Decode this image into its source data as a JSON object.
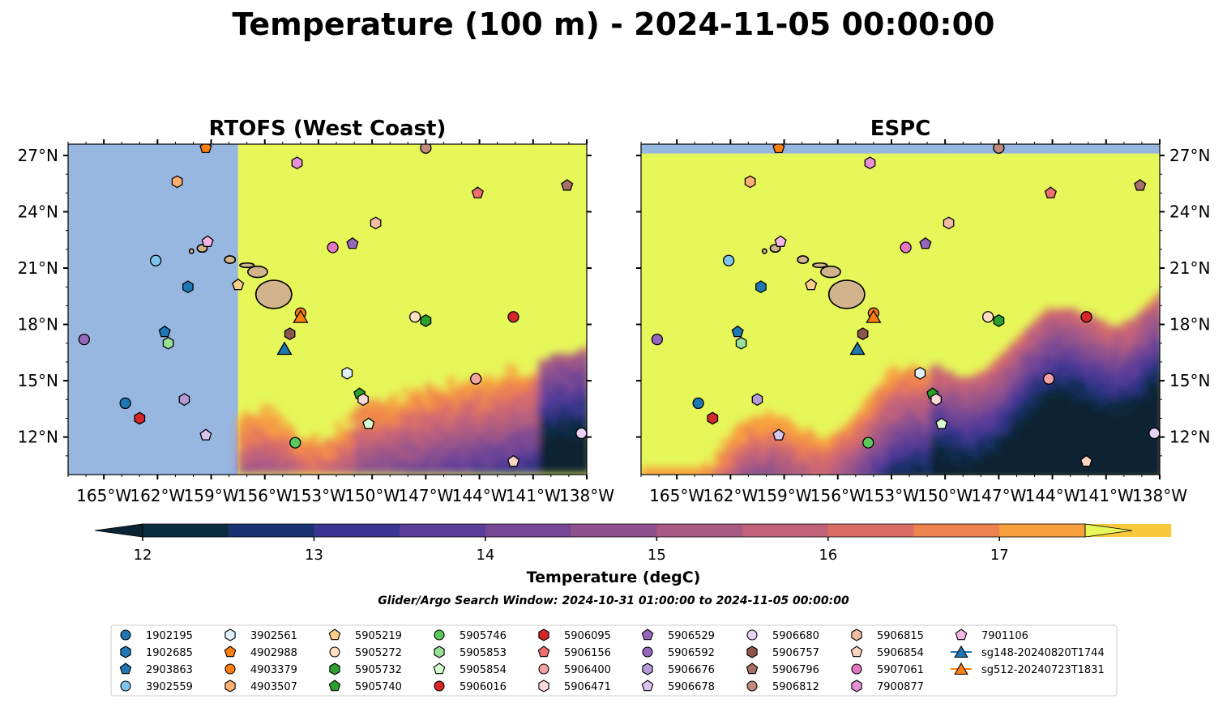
{
  "figure": {
    "title": "Temperature (100 m) - 2024-11-05 00:00:00",
    "search_window": "Glider/Argo Search Window: 2024-10-31 01:00:00 to 2024-11-05 00:00:00"
  },
  "colors": {
    "land": "#d2b48c",
    "nodata": "#97b6e0",
    "warm": "#e6f75a",
    "frame": "#000000"
  },
  "chart_data": {
    "type": "heatmap",
    "panels": [
      {
        "id": "rtofs",
        "title": "RTOFS (West Coast)",
        "model_west_edge_lon": -157.5,
        "model_north_edge_lat": 27.6,
        "cool_field": "south-east"
      },
      {
        "id": "espc",
        "title": "ESPC",
        "model_west_edge_lon": -167,
        "model_north_edge_lat": 27.1,
        "cool_field": "south"
      }
    ],
    "xlim": [
      -167,
      -138
    ],
    "ylim": [
      10,
      27.6
    ],
    "x_ticks": [
      {
        "value": -165,
        "label": "165°W"
      },
      {
        "value": -162,
        "label": "162°W"
      },
      {
        "value": -159,
        "label": "159°W"
      },
      {
        "value": -156,
        "label": "156°W"
      },
      {
        "value": -153,
        "label": "153°W"
      },
      {
        "value": -150,
        "label": "150°W"
      },
      {
        "value": -147,
        "label": "147°W"
      },
      {
        "value": -144,
        "label": "144°W"
      },
      {
        "value": -141,
        "label": "141°W"
      },
      {
        "value": -138,
        "label": "138°W"
      }
    ],
    "y_ticks": [
      {
        "value": 12,
        "label": "12°N"
      },
      {
        "value": 15,
        "label": "15°N"
      },
      {
        "value": 18,
        "label": "18°N"
      },
      {
        "value": 21,
        "label": "21°N"
      },
      {
        "value": 24,
        "label": "24°N"
      },
      {
        "value": 27,
        "label": "27°N"
      }
    ],
    "colorbar": {
      "label": "Temperature (degC)",
      "min": 12,
      "max": 17.5,
      "step": 0.5,
      "ticks": [
        12,
        13,
        14,
        15,
        16,
        17
      ],
      "colors": [
        "#0c2c40",
        "#1b3272",
        "#3c3492",
        "#5a3d98",
        "#764795",
        "#8e518e",
        "#a85a84",
        "#c2627a",
        "#da6e67",
        "#ee8350",
        "#f8a03e",
        "#f7c83c"
      ],
      "under_color": "#0a2433",
      "over_color": "#e6f75a",
      "extend": "both"
    },
    "floats": [
      {
        "id": "1902195",
        "lon": -163.8,
        "lat": 13.8,
        "marker": "circle",
        "color": "#1f77b4"
      },
      {
        "id": "1902685",
        "lon": -160.3,
        "lat": 20.0,
        "marker": "hexagon",
        "color": "#1f77b4"
      },
      {
        "id": "2903863",
        "lon": -161.6,
        "lat": 17.6,
        "marker": "pentagon",
        "color": "#1f77b4"
      },
      {
        "id": "3902559",
        "lon": -162.1,
        "lat": 21.4,
        "marker": "circle",
        "color": "#7fc4ec"
      },
      {
        "id": "3902561",
        "lon": -151.4,
        "lat": 15.4,
        "marker": "hexagon",
        "color": "#dff2fb"
      },
      {
        "id": "4902988",
        "lon": -159.3,
        "lat": 27.4,
        "marker": "pentagon",
        "color": "#ff7f0e"
      },
      {
        "id": "4903379",
        "lon": -154.0,
        "lat": 18.6,
        "marker": "circle",
        "color": "#ff7f0e"
      },
      {
        "id": "4903507",
        "lon": -160.9,
        "lat": 25.6,
        "marker": "hexagon",
        "color": "#ffb070"
      },
      {
        "id": "5905219",
        "lon": -157.5,
        "lat": 20.1,
        "marker": "pentagon",
        "color": "#ffcf8a"
      },
      {
        "id": "5905272",
        "lon": -147.6,
        "lat": 18.4,
        "marker": "circle",
        "color": "#ffe0c0"
      },
      {
        "id": "5905732",
        "lon": -147.0,
        "lat": 18.2,
        "marker": "hexagon",
        "color": "#2ca02c"
      },
      {
        "id": "5905740",
        "lon": -150.7,
        "lat": 14.3,
        "marker": "pentagon",
        "color": "#2ca02c"
      },
      {
        "id": "5905746",
        "lon": -154.3,
        "lat": 11.7,
        "marker": "circle",
        "color": "#5cc95c"
      },
      {
        "id": "5905853",
        "lon": -161.4,
        "lat": 17.0,
        "marker": "hexagon",
        "color": "#98e098"
      },
      {
        "id": "5905854",
        "lon": -150.2,
        "lat": 12.7,
        "marker": "pentagon",
        "color": "#d7fbd0"
      },
      {
        "id": "5906016",
        "lon": -142.1,
        "lat": 18.4,
        "marker": "circle",
        "color": "#d62728"
      },
      {
        "id": "5906095",
        "lon": -163.0,
        "lat": 13.0,
        "marker": "hexagon",
        "color": "#d62728"
      },
      {
        "id": "5906156",
        "lon": -144.1,
        "lat": 25.0,
        "marker": "pentagon",
        "color": "#f07070"
      },
      {
        "id": "5906400",
        "lon": -144.2,
        "lat": 15.1,
        "marker": "circle",
        "color": "#f4a3a3"
      },
      {
        "id": "5906471",
        "lon": -150.5,
        "lat": 14.0,
        "marker": "hexagon",
        "color": "#fdd9d9"
      },
      {
        "id": "5906529",
        "lon": -151.1,
        "lat": 22.3,
        "marker": "pentagon",
        "color": "#9467bd"
      },
      {
        "id": "5906592",
        "lon": -166.1,
        "lat": 17.2,
        "marker": "circle",
        "color": "#9467bd"
      },
      {
        "id": "5906676",
        "lon": -160.5,
        "lat": 14.0,
        "marker": "hexagon",
        "color": "#b59ad6"
      },
      {
        "id": "5906678",
        "lon": -159.3,
        "lat": 12.1,
        "marker": "pentagon",
        "color": "#d9c6ef"
      },
      {
        "id": "5906680",
        "lon": -138.3,
        "lat": 12.2,
        "marker": "circle",
        "color": "#e9d3f7"
      },
      {
        "id": "5906757",
        "lon": -154.6,
        "lat": 17.5,
        "marker": "hexagon",
        "color": "#8c564b"
      },
      {
        "id": "5906796",
        "lon": -139.1,
        "lat": 25.4,
        "marker": "pentagon",
        "color": "#a67166"
      },
      {
        "id": "5906812",
        "lon": -147.0,
        "lat": 27.4,
        "marker": "circle",
        "color": "#c08a7d"
      },
      {
        "id": "5906815",
        "lon": -149.8,
        "lat": 23.4,
        "marker": "hexagon",
        "color": "#f2bca4"
      },
      {
        "id": "5906854",
        "lon": -142.1,
        "lat": 10.7,
        "marker": "pentagon",
        "color": "#fbd4c4"
      },
      {
        "id": "5907061",
        "lon": -152.2,
        "lat": 22.1,
        "marker": "circle",
        "color": "#e377c2"
      },
      {
        "id": "7900877",
        "lon": -154.2,
        "lat": 26.6,
        "marker": "hexagon",
        "color": "#e890d6"
      },
      {
        "id": "7901106",
        "lon": -159.2,
        "lat": 22.4,
        "marker": "pentagon",
        "color": "#f6b6e6"
      }
    ],
    "gliders": [
      {
        "id": "sg148-20240820T1744",
        "lon": -154.9,
        "lat": 16.7,
        "color": "#1f77b4"
      },
      {
        "id": "sg512-20240723T1831",
        "lon": -154.0,
        "lat": 18.4,
        "color": "#ff7f0e"
      }
    ]
  }
}
